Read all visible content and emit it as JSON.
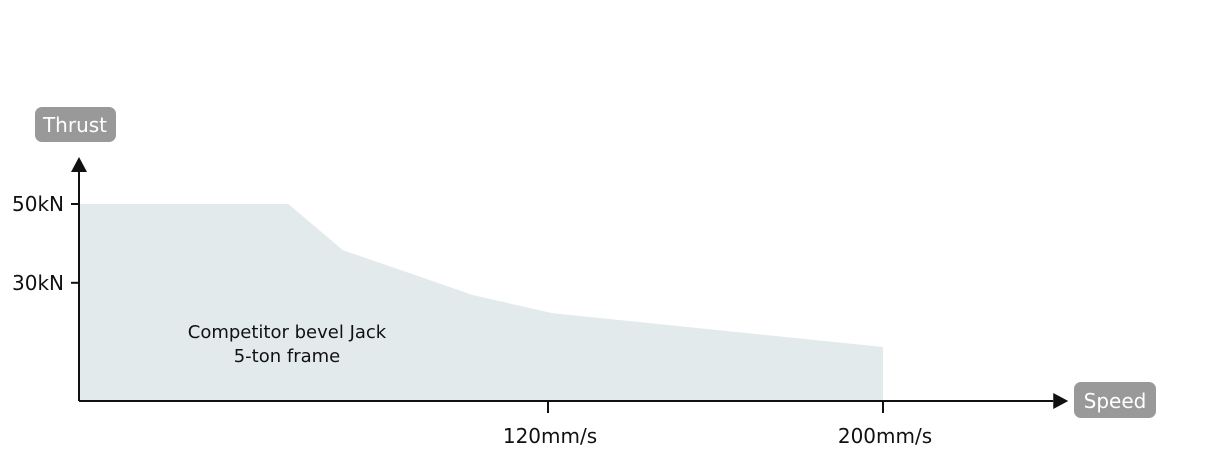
{
  "chart_data": {
    "type": "area",
    "title": "",
    "xlabel": "Speed",
    "ylabel": "Thrust",
    "x_ticks": [
      {
        "value": 120,
        "label": "120mm/s"
      },
      {
        "value": 200,
        "label": "200mm/s"
      }
    ],
    "y_ticks": [
      {
        "value": 50,
        "label": "50kN"
      },
      {
        "value": 30,
        "label": "30kN"
      }
    ],
    "xlim": [
      8,
      244
    ],
    "ylim": [
      0,
      59
    ],
    "grid": false,
    "series": [
      {
        "x": [
          8,
          58,
          71,
          102,
          121,
          200,
          200
        ],
        "y": [
          50,
          50,
          38.3,
          26.9,
          22.3,
          13.7,
          0
        ],
        "color": "#e3eaeb"
      }
    ],
    "annotations": [
      "Competitor bevel Jack",
      "5-ton frame"
    ],
    "badge_color": "#999999",
    "axis_color": "#111111"
  }
}
